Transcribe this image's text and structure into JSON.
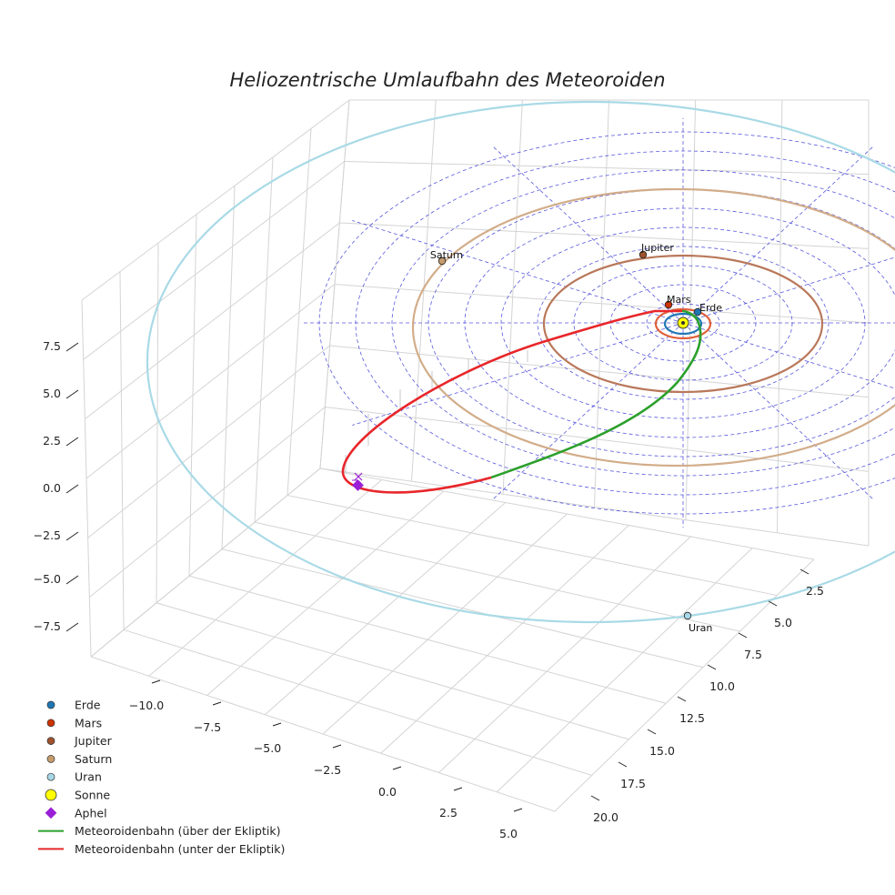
{
  "chart_data": {
    "type": "line3d",
    "title": "Heliozentrische Umlaufbahn des Meteoroiden",
    "axes": {
      "x": {
        "ticks": [
          "−10.0",
          "−7.5",
          "−5.0",
          "−2.5",
          "0.0",
          "2.5",
          "5.0"
        ],
        "range": [
          -11,
          6
        ]
      },
      "y": {
        "ticks": [
          "2.5",
          "5.0",
          "7.5",
          "10.0",
          "12.5",
          "15.0",
          "17.5",
          "20.0"
        ],
        "range": [
          1,
          21
        ]
      },
      "z": {
        "ticks": [
          "7.5",
          "5.0",
          "2.5",
          "0.0",
          "−2.5",
          "−5.0",
          "−7.5"
        ],
        "range": [
          -9,
          9
        ]
      }
    },
    "sun": {
      "name": "Sonne",
      "color": "#ffff00",
      "edge": "#333333"
    },
    "planets": [
      {
        "name": "Erde",
        "color": "#1f77b4",
        "orbit_color": "#1f77b4",
        "orbit_radius_au": 1.0,
        "label": "Erde"
      },
      {
        "name": "Mars",
        "color": "#cc3300",
        "orbit_color": "#e0603a",
        "orbit_radius_au": 1.52,
        "label": "Mars"
      },
      {
        "name": "Jupiter",
        "color": "#a0522d",
        "orbit_color": "#b9785a",
        "orbit_radius_au": 5.2,
        "label": "Jupiter"
      },
      {
        "name": "Saturn",
        "color": "#c69c6d",
        "orbit_color": "#d2ad8a",
        "orbit_radius_au": 9.54,
        "label": "Saturn"
      },
      {
        "name": "Uran",
        "color": "#a7d8e8",
        "orbit_color": "#a9dae6",
        "orbit_radius_au": 19.2,
        "label": "Uran"
      }
    ],
    "meteoroid": {
      "above_label": "Meteoroidenbahn (über der Ekliptik)",
      "below_label": "Meteoroidenbahn (unter der Ekliptik)",
      "above_color": "#2ca02c",
      "below_color": "#e8262a",
      "aphel_label": "Aphel",
      "aphel_color": "#9a1fd6"
    },
    "ecliptic_grid_color": "#3b3bd6",
    "legend": {
      "position": "lower-left",
      "entries": [
        {
          "label": "Erde",
          "kind": "dot",
          "color": "#1f77b4"
        },
        {
          "label": "Mars",
          "kind": "dot",
          "color": "#cc3300"
        },
        {
          "label": "Jupiter",
          "kind": "dot",
          "color": "#a0522d"
        },
        {
          "label": "Saturn",
          "kind": "dot",
          "color": "#c69c6d"
        },
        {
          "label": "Uran",
          "kind": "dot",
          "color": "#a7d8e8"
        },
        {
          "label": "Sonne",
          "kind": "bigdot",
          "color": "#ffff00"
        },
        {
          "label": "Aphel",
          "kind": "diamond",
          "color": "#9a1fd6"
        },
        {
          "label": "Meteoroidenbahn (über der Ekliptik)",
          "kind": "line",
          "color": "#2ca02c"
        },
        {
          "label": "Meteoroidenbahn (unter der Ekliptik)",
          "kind": "line",
          "color": "#e8262a"
        }
      ]
    }
  }
}
